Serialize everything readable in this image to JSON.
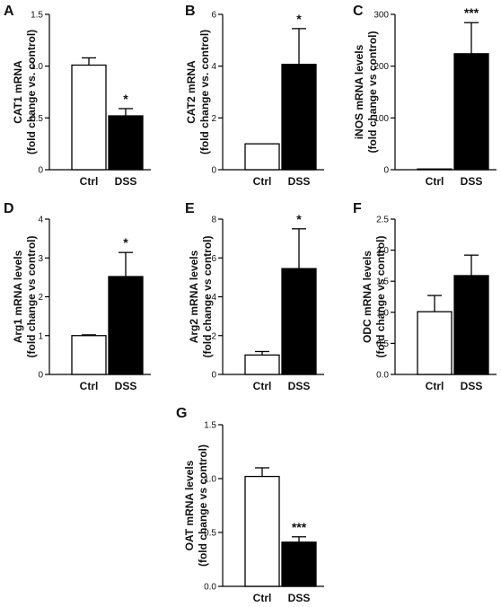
{
  "chart_data": [
    {
      "type": "bar",
      "panel": "A",
      "ylabel": [
        "CAT1 mRNA",
        "(fold change vs. control)"
      ],
      "categories": [
        "Ctrl",
        "DSS"
      ],
      "values": [
        1.01,
        0.52
      ],
      "errors": [
        0.07,
        0.07
      ],
      "significance": [
        "",
        "*"
      ],
      "ylim": [
        0,
        1.5
      ],
      "yticks": [
        0,
        0.5,
        1.0,
        1.5
      ],
      "ytick_labels": [
        "0",
        "0.5",
        "1.0",
        "1.5"
      ],
      "bar_colors": [
        "#ffffff",
        "#000000"
      ]
    },
    {
      "type": "bar",
      "panel": "B",
      "ylabel": [
        "CAT2 mRNA",
        "(fold change vs. control)"
      ],
      "categories": [
        "Ctrl",
        "DSS"
      ],
      "values": [
        1.0,
        4.07
      ],
      "errors": [
        0.0,
        1.38
      ],
      "significance": [
        "",
        "*"
      ],
      "ylim": [
        0,
        6
      ],
      "yticks": [
        0,
        2,
        4,
        6
      ],
      "ytick_labels": [
        "0",
        "2",
        "4",
        "6"
      ],
      "bar_colors": [
        "#ffffff",
        "#000000"
      ]
    },
    {
      "type": "bar",
      "panel": "C",
      "ylabel": [
        "iNOS mRNA levels",
        "(fold change vs control)"
      ],
      "categories": [
        "Ctrl",
        "DSS"
      ],
      "values": [
        1.0,
        224
      ],
      "errors": [
        0.0,
        60
      ],
      "significance": [
        "",
        "***"
      ],
      "ylim": [
        0,
        300
      ],
      "yticks": [
        0,
        100,
        200,
        300
      ],
      "ytick_labels": [
        "0",
        "100",
        "200",
        "300"
      ],
      "bar_colors": [
        "#ffffff",
        "#000000"
      ]
    },
    {
      "type": "bar",
      "panel": "D",
      "ylabel": [
        "Arg1 mRNA levels",
        "(fold change vs control)"
      ],
      "categories": [
        "Ctrl",
        "DSS"
      ],
      "values": [
        1.0,
        2.52
      ],
      "errors": [
        0.02,
        0.62
      ],
      "significance": [
        "",
        "*"
      ],
      "ylim": [
        0,
        4
      ],
      "yticks": [
        0,
        1,
        2,
        3,
        4
      ],
      "ytick_labels": [
        "0",
        "1",
        "2",
        "3",
        "4"
      ],
      "bar_colors": [
        "#ffffff",
        "#000000"
      ]
    },
    {
      "type": "bar",
      "panel": "E",
      "ylabel": [
        "Arg2 mRNA levels",
        "(fold change vs control)"
      ],
      "categories": [
        "Ctrl",
        "DSS"
      ],
      "values": [
        1.0,
        5.45
      ],
      "errors": [
        0.18,
        2.05
      ],
      "significance": [
        "",
        "*"
      ],
      "ylim": [
        0,
        8
      ],
      "yticks": [
        0,
        2,
        4,
        6,
        8
      ],
      "ytick_labels": [
        "0",
        "2",
        "4",
        "6",
        "8"
      ],
      "bar_colors": [
        "#ffffff",
        "#000000"
      ]
    },
    {
      "type": "bar",
      "panel": "F",
      "ylabel": [
        "ODC mRNA levels",
        "(fold change vs control)"
      ],
      "categories": [
        "Ctrl",
        "DSS"
      ],
      "values": [
        1.01,
        1.59
      ],
      "errors": [
        0.26,
        0.33
      ],
      "significance": [
        "",
        ""
      ],
      "ylim": [
        0,
        2.5
      ],
      "yticks": [
        0,
        0.5,
        1.0,
        1.5,
        2.0,
        2.5
      ],
      "ytick_labels": [
        "0.0",
        "0.5",
        "1.0",
        "1.5",
        "2.0",
        "2.5"
      ],
      "bar_colors": [
        "#ffffff",
        "#000000"
      ]
    },
    {
      "type": "bar",
      "panel": "G",
      "ylabel": [
        "OAT mRNA levels",
        "(fold change vs control)"
      ],
      "categories": [
        "Ctrl",
        "DSS"
      ],
      "values": [
        1.02,
        0.41
      ],
      "errors": [
        0.08,
        0.05
      ],
      "significance": [
        "",
        "***"
      ],
      "ylim": [
        0,
        1.5
      ],
      "yticks": [
        0,
        0.5,
        1.0,
        1.5
      ],
      "ytick_labels": [
        "0.0",
        "0.5",
        "1.0",
        "1.5"
      ],
      "bar_colors": [
        "#ffffff",
        "#000000"
      ]
    }
  ]
}
